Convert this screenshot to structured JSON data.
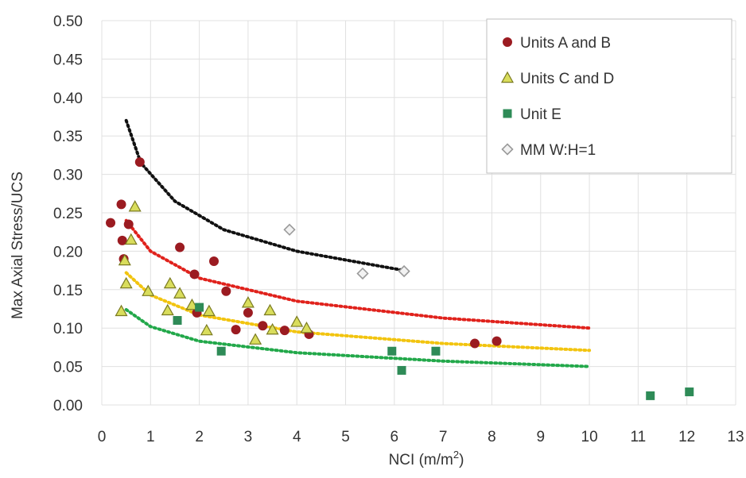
{
  "chart_data": {
    "type": "scatter",
    "xlabel": "NCI (m/m",
    "xlabel_sup": "2",
    "xlabel_end": ")",
    "ylabel": "Max Axial Stress/UCS",
    "xlim": [
      0,
      13
    ],
    "ylim": [
      0,
      0.5
    ],
    "x_ticks": [
      0,
      1,
      2,
      3,
      4,
      5,
      6,
      7,
      8,
      9,
      10,
      11,
      12,
      13
    ],
    "x_tick_labels": [
      "0",
      "1",
      "2",
      "3",
      "4",
      "5",
      "6",
      "7",
      "8",
      "9",
      "10",
      "11",
      "12",
      "13"
    ],
    "y_ticks": [
      0,
      0.05,
      0.1,
      0.15,
      0.2,
      0.25,
      0.3,
      0.35,
      0.4,
      0.45,
      0.5
    ],
    "y_tick_labels": [
      "0.00",
      "0.05",
      "0.10",
      "0.15",
      "0.20",
      "0.25",
      "0.30",
      "0.35",
      "0.40",
      "0.45",
      "0.50"
    ],
    "grid": true,
    "legend_position": "top-right",
    "series": [
      {
        "name": "Units A and B",
        "marker": "circle",
        "color": "#9b1b21",
        "points": [
          [
            0.18,
            0.237
          ],
          [
            0.4,
            0.261
          ],
          [
            0.42,
            0.214
          ],
          [
            0.45,
            0.19
          ],
          [
            0.55,
            0.235
          ],
          [
            0.78,
            0.316
          ],
          [
            1.6,
            0.205
          ],
          [
            1.9,
            0.17
          ],
          [
            1.95,
            0.12
          ],
          [
            2.3,
            0.187
          ],
          [
            2.55,
            0.148
          ],
          [
            2.75,
            0.098
          ],
          [
            3.0,
            0.12
          ],
          [
            3.3,
            0.103
          ],
          [
            3.75,
            0.097
          ],
          [
            4.25,
            0.092
          ],
          [
            7.65,
            0.08
          ],
          [
            8.1,
            0.083
          ]
        ]
      },
      {
        "name": "Units C and D",
        "marker": "triangle",
        "color": "#d9dd5c",
        "points": [
          [
            0.4,
            0.122
          ],
          [
            0.47,
            0.188
          ],
          [
            0.5,
            0.158
          ],
          [
            0.6,
            0.215
          ],
          [
            0.68,
            0.258
          ],
          [
            0.95,
            0.148
          ],
          [
            1.35,
            0.123
          ],
          [
            1.4,
            0.158
          ],
          [
            1.6,
            0.145
          ],
          [
            1.85,
            0.13
          ],
          [
            2.15,
            0.097
          ],
          [
            2.2,
            0.122
          ],
          [
            3.0,
            0.133
          ],
          [
            3.15,
            0.085
          ],
          [
            3.45,
            0.123
          ],
          [
            3.5,
            0.098
          ],
          [
            4.0,
            0.108
          ],
          [
            4.2,
            0.1
          ]
        ]
      },
      {
        "name": "Unit E",
        "marker": "square",
        "color": "#2e8b57",
        "points": [
          [
            1.55,
            0.11
          ],
          [
            2.0,
            0.127
          ],
          [
            2.45,
            0.07
          ],
          [
            5.95,
            0.07
          ],
          [
            6.15,
            0.045
          ],
          [
            6.85,
            0.07
          ],
          [
            11.25,
            0.012
          ],
          [
            12.05,
            0.017
          ]
        ]
      },
      {
        "name": "MM W:H=1",
        "marker": "diamond",
        "color": "#9a9a9a",
        "points": [
          [
            3.85,
            0.228
          ],
          [
            5.35,
            0.171
          ],
          [
            6.2,
            0.174
          ]
        ]
      }
    ],
    "trendlines": [
      {
        "color": "#111111",
        "x_range": [
          0.5,
          6.2
        ],
        "anchors": [
          [
            0.5,
            0.37
          ],
          [
            0.8,
            0.315
          ],
          [
            1.5,
            0.265
          ],
          [
            2.5,
            0.228
          ],
          [
            4.0,
            0.2
          ],
          [
            6.2,
            0.175
          ]
        ]
      },
      {
        "color": "#e0221c",
        "x_range": [
          0.5,
          10
        ],
        "anchors": [
          [
            0.5,
            0.24
          ],
          [
            1.0,
            0.2
          ],
          [
            2.0,
            0.165
          ],
          [
            4.0,
            0.135
          ],
          [
            7.0,
            0.113
          ],
          [
            10.0,
            0.1
          ]
        ]
      },
      {
        "color": "#f2c40f",
        "x_range": [
          0.5,
          10
        ],
        "anchors": [
          [
            0.5,
            0.172
          ],
          [
            1.0,
            0.143
          ],
          [
            2.0,
            0.117
          ],
          [
            4.0,
            0.095
          ],
          [
            7.0,
            0.08
          ],
          [
            10.0,
            0.071
          ]
        ]
      },
      {
        "color": "#22a84a",
        "x_range": [
          0.5,
          10
        ],
        "anchors": [
          [
            0.5,
            0.124
          ],
          [
            1.0,
            0.102
          ],
          [
            2.0,
            0.083
          ],
          [
            4.0,
            0.068
          ],
          [
            7.0,
            0.057
          ],
          [
            10.0,
            0.05
          ]
        ]
      }
    ]
  }
}
